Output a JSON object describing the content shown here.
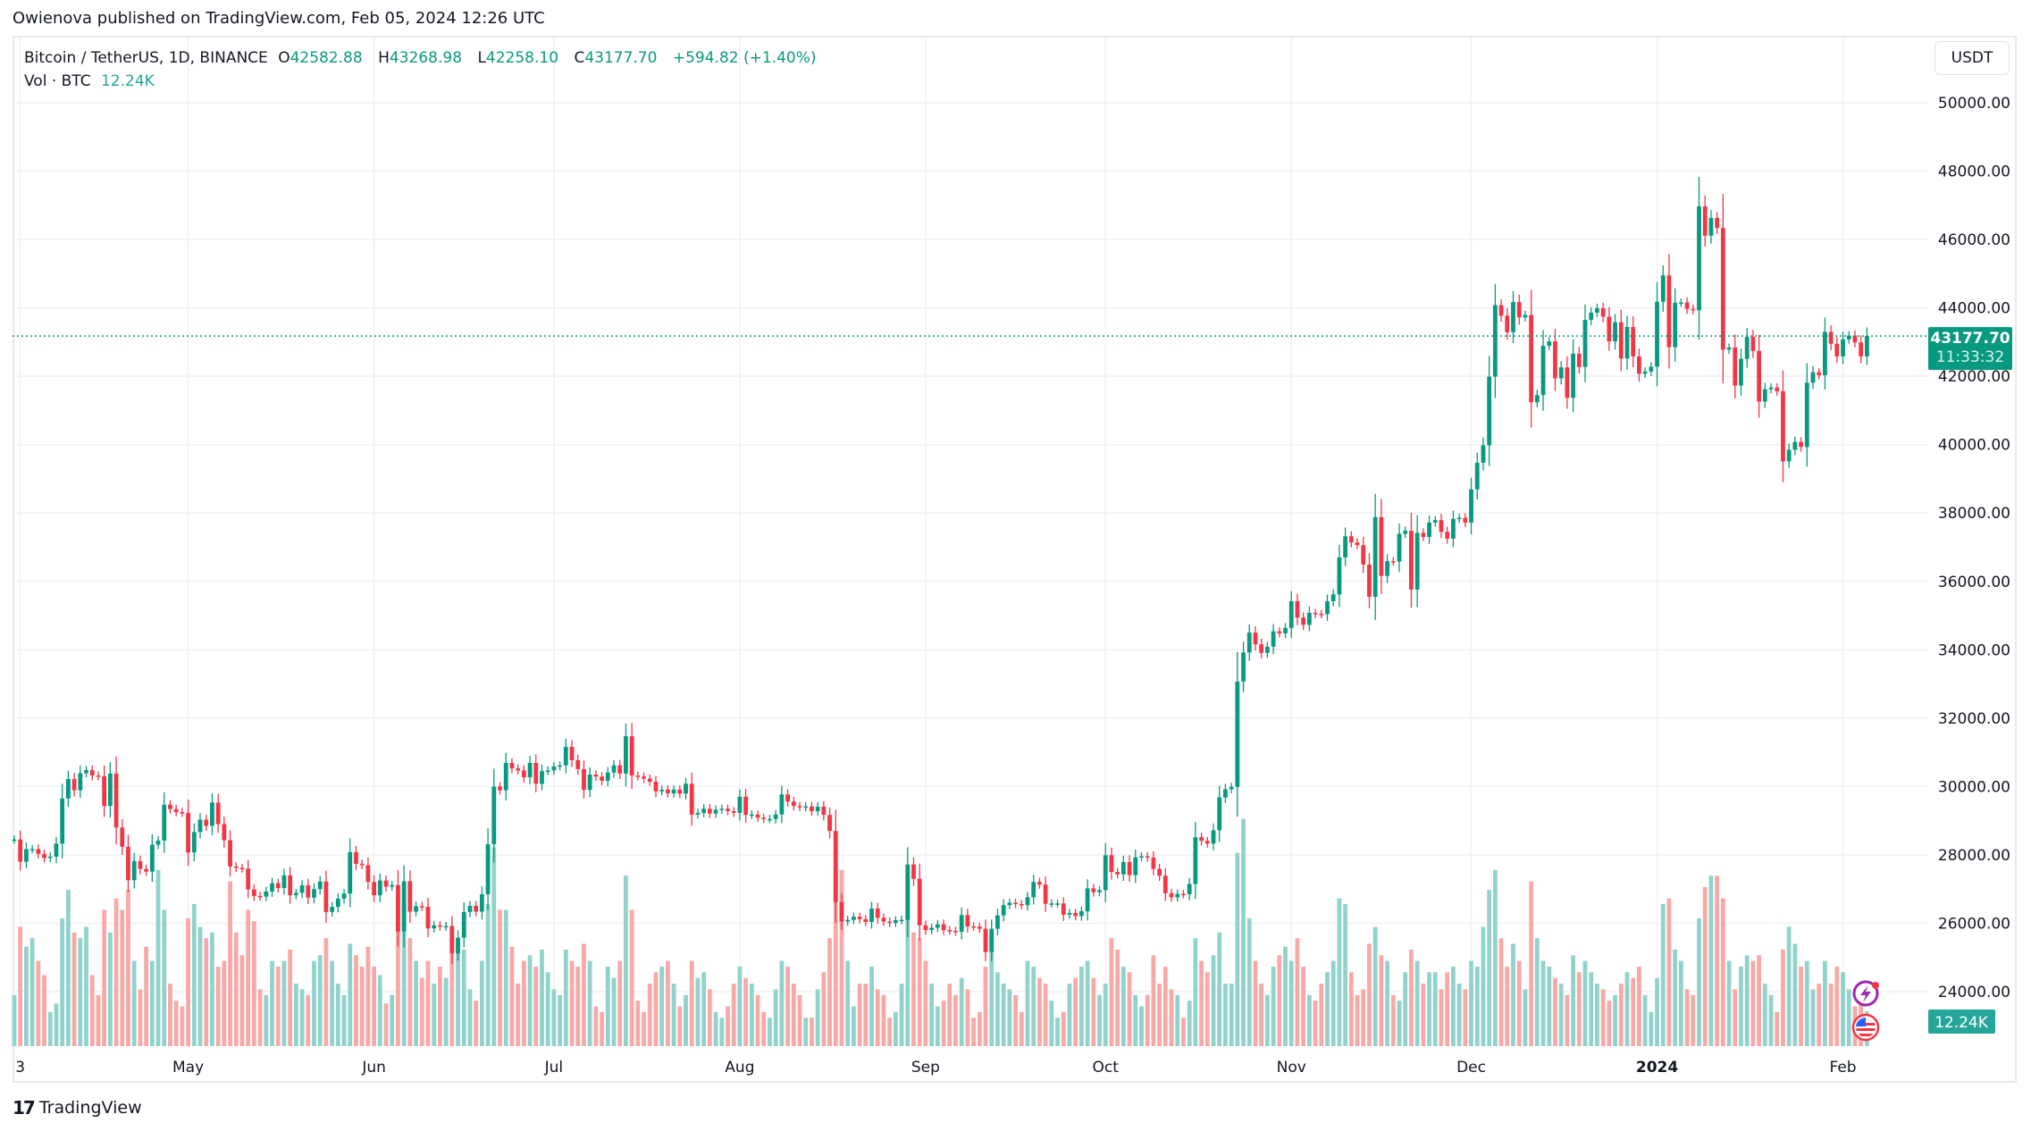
{
  "publisher_line": "Owienova published on TradingView.com, Feb 05, 2024 12:26 UTC",
  "legend": {
    "symbol": "Bitcoin / TetherUS, 1D, BINANCE",
    "o_label": "O",
    "o": "42582.88",
    "h_label": "H",
    "h": "43268.98",
    "l_label": "L",
    "l": "42258.10",
    "c_label": "C",
    "c": "43177.70",
    "change": "+594.82 (+1.40%)",
    "vol_label": "Vol · BTC",
    "vol_value": "12.24K"
  },
  "currency_button": "USDT",
  "last_price": {
    "price": "43177.70",
    "countdown": "11:33:32"
  },
  "volume_badge": "12.24K",
  "footer_brand": "TradingView",
  "icons": [
    "lightning-event-icon",
    "us-flag-event-icon",
    "tradingview-logo-icon"
  ],
  "colors": {
    "up": "#089981",
    "down": "#f23645",
    "vol_up": "#92d2cc",
    "vol_down": "#f7a9a7",
    "grid": "#f0f1f4"
  },
  "chart_data": {
    "type": "candlestick",
    "title": "Bitcoin / TetherUS, 1D, BINANCE",
    "ylim": [
      23000,
      51000
    ],
    "y_ticks": [
      "24000.00",
      "26000.00",
      "28000.00",
      "30000.00",
      "32000.00",
      "34000.00",
      "36000.00",
      "38000.00",
      "40000.00",
      "42000.00",
      "44000.00",
      "46000.00",
      "48000.00",
      "50000.00"
    ],
    "x_ticks": [
      {
        "label": "3",
        "date": "2023-04-03"
      },
      {
        "label": "May",
        "date": "2023-05-01"
      },
      {
        "label": "Jun",
        "date": "2023-06-01"
      },
      {
        "label": "Jul",
        "date": "2023-07-01"
      },
      {
        "label": "Aug",
        "date": "2023-08-01"
      },
      {
        "label": "Sep",
        "date": "2023-09-01"
      },
      {
        "label": "Oct",
        "date": "2023-10-01"
      },
      {
        "label": "Nov",
        "date": "2023-11-01"
      },
      {
        "label": "Dec",
        "date": "2023-12-01"
      },
      {
        "label": "2024",
        "date": "2024-01-01",
        "bold": true
      },
      {
        "label": "Feb",
        "date": "2024-02-01"
      }
    ],
    "grid": true,
    "first_open": 28450,
    "volume_unit": "K BTC",
    "months": [
      {
        "month": "2023-04",
        "first_day": 2,
        "close": [
          28450,
          27800,
          28170,
          28170,
          28030,
          27910,
          27950,
          28330,
          29650,
          30220,
          29890,
          30390,
          30480,
          30320,
          30300,
          29430,
          30380,
          28800,
          28240,
          27260,
          27820,
          27590,
          27510,
          28300,
          28420,
          29470,
          29340,
          29250,
          29230
        ],
        "volume": [
          18,
          42,
          35,
          38,
          30,
          25,
          12,
          15,
          45,
          55,
          40,
          38,
          42,
          25,
          18,
          48,
          40,
          52,
          48,
          55,
          30,
          20,
          35,
          30,
          62,
          48,
          22,
          16,
          14
        ]
      },
      {
        "month": "2023-05",
        "first_day": 1,
        "close": [
          28070,
          28670,
          29030,
          28850,
          29530,
          28900,
          28430,
          27660,
          27620,
          27600,
          26990,
          26800,
          26780,
          26930,
          27170,
          27030,
          27400,
          26820,
          26890,
          27110,
          26750,
          27000,
          27220,
          26330,
          26480,
          26720,
          26870,
          28080,
          27740,
          27700,
          27210
        ],
        "volume": [
          45,
          50,
          42,
          38,
          40,
          28,
          30,
          58,
          40,
          32,
          48,
          44,
          20,
          18,
          30,
          28,
          30,
          34,
          22,
          20,
          18,
          30,
          32,
          38,
          30,
          22,
          18,
          36,
          32,
          28,
          35
        ]
      },
      {
        "month": "2023-06",
        "first_day": 1,
        "close": [
          26820,
          27250,
          27070,
          27120,
          25760,
          27230,
          26340,
          26500,
          26480,
          25850,
          25940,
          25900,
          25920,
          25120,
          25580,
          26330,
          26510,
          26340,
          26850,
          28310,
          30000,
          29890,
          30690,
          30530,
          30470,
          30270,
          30690,
          30080,
          30450,
          30470
        ],
        "volume": [
          28,
          25,
          15,
          18,
          52,
          50,
          38,
          30,
          24,
          30,
          22,
          28,
          24,
          40,
          38,
          34,
          20,
          16,
          30,
          50,
          70,
          48,
          48,
          35,
          22,
          30,
          32,
          28,
          34,
          26
        ]
      },
      {
        "month": "2023-07",
        "first_day": 1,
        "close": [
          30590,
          30620,
          31160,
          30770,
          30510,
          29900,
          30350,
          30290,
          30170,
          30410,
          30620,
          30380,
          31470,
          30320,
          30290,
          30230,
          30140,
          29860,
          29910,
          29800,
          29910,
          29790,
          30080,
          29180,
          29230,
          29350,
          29210,
          29320,
          29350,
          29280,
          29230
        ],
        "volume": [
          20,
          18,
          34,
          30,
          28,
          36,
          30,
          14,
          12,
          28,
          24,
          30,
          60,
          48,
          16,
          12,
          22,
          26,
          28,
          30,
          22,
          14,
          18,
          30,
          24,
          26,
          20,
          12,
          10,
          14,
          22
        ]
      },
      {
        "month": "2023-08",
        "first_day": 1,
        "close": [
          29700,
          29170,
          29180,
          29090,
          29050,
          29050,
          29180,
          29770,
          29560,
          29430,
          29400,
          29420,
          29280,
          29410,
          29170,
          28700,
          26620,
          26050,
          26100,
          26190,
          26120,
          26040,
          26430,
          26160,
          26050,
          26010,
          26090,
          26100,
          27720,
          27300,
          25940
        ],
        "volume": [
          28,
          24,
          22,
          18,
          12,
          10,
          20,
          30,
          28,
          22,
          18,
          10,
          10,
          20,
          26,
          38,
          75,
          62,
          30,
          14,
          22,
          22,
          28,
          20,
          18,
          10,
          12,
          22,
          62,
          40,
          38
        ]
      },
      {
        "month": "2023-09",
        "first_day": 1,
        "close": [
          25800,
          25870,
          25970,
          25800,
          25780,
          25750,
          26240,
          25910,
          25900,
          25840,
          25160,
          25840,
          26230,
          26530,
          26600,
          26560,
          26530,
          26760,
          27210,
          27130,
          26570,
          26580,
          26580,
          26250,
          26300,
          26210,
          26350,
          27020,
          26910,
          26970
        ],
        "volume": [
          30,
          22,
          14,
          16,
          22,
          18,
          24,
          20,
          10,
          12,
          28,
          38,
          26,
          22,
          20,
          18,
          12,
          30,
          28,
          24,
          22,
          16,
          10,
          12,
          22,
          24,
          28,
          30,
          24,
          18
        ]
      },
      {
        "month": "2023-10",
        "first_day": 1,
        "close": [
          27990,
          27500,
          27430,
          27790,
          27410,
          27930,
          27960,
          27920,
          27590,
          27390,
          26880,
          26760,
          26860,
          26850,
          27150,
          28520,
          28410,
          28330,
          28720,
          29680,
          29920,
          29990,
          33070,
          33920,
          34500,
          34160,
          33910,
          34090,
          34540,
          34480,
          34640
        ],
        "volume": [
          22,
          38,
          34,
          28,
          26,
          18,
          14,
          18,
          32,
          22,
          28,
          20,
          18,
          10,
          16,
          38,
          30,
          26,
          32,
          40,
          22,
          22,
          68,
          80,
          45,
          30,
          22,
          18,
          28,
          32,
          35
        ]
      },
      {
        "month": "2023-11",
        "first_day": 1,
        "close": [
          35420,
          34940,
          34730,
          35080,
          35050,
          35040,
          35420,
          35620,
          36700,
          37320,
          37140,
          37060,
          36490,
          35550,
          37880,
          36160,
          36590,
          36580,
          37390,
          37480,
          35760,
          37420,
          37300,
          37720,
          37790,
          37450,
          37250,
          37830,
          37860,
          37720
        ],
        "volume": [
          30,
          38,
          28,
          18,
          16,
          22,
          26,
          30,
          52,
          50,
          26,
          18,
          20,
          36,
          42,
          32,
          30,
          18,
          16,
          26,
          34,
          30,
          22,
          26,
          26,
          20,
          26,
          28,
          22,
          20
        ]
      },
      {
        "month": "2023-12",
        "first_day": 1,
        "close": [
          38690,
          39470,
          39980,
          41990,
          44080,
          43770,
          43290,
          44170,
          43720,
          43790,
          41240,
          41450,
          42890,
          43020,
          41940,
          42260,
          41370,
          42660,
          42270,
          43650,
          43860,
          43990,
          43740,
          43020,
          43580,
          42520,
          43440,
          42580,
          42070,
          42140,
          42280
        ],
        "volume": [
          30,
          28,
          42,
          55,
          62,
          38,
          28,
          36,
          30,
          20,
          58,
          38,
          30,
          28,
          24,
          22,
          18,
          32,
          26,
          30,
          26,
          22,
          20,
          16,
          18,
          22,
          26,
          24,
          28,
          18,
          12
        ]
      },
      {
        "month": "2024-01",
        "first_day": 1,
        "close": [
          44180,
          44950,
          42850,
          44150,
          44160,
          43970,
          43930,
          46970,
          46110,
          46630,
          46340,
          42780,
          42840,
          41730,
          42510,
          43150,
          42740,
          41260,
          41620,
          41670,
          41560,
          39510,
          39850,
          40080,
          39930,
          41810,
          42120,
          42030,
          43300,
          42950,
          42580
        ],
        "volume": [
          24,
          50,
          52,
          34,
          30,
          20,
          18,
          45,
          56,
          60,
          60,
          52,
          30,
          20,
          28,
          32,
          30,
          32,
          22,
          18,
          12,
          34,
          42,
          36,
          28,
          30,
          20,
          22,
          30,
          22,
          28
        ]
      },
      {
        "month": "2024-02",
        "first_day": 1,
        "close": [
          43080,
          43190,
          42990,
          42580,
          43177.7
        ],
        "volume": [
          26,
          20,
          14,
          18,
          12.24
        ]
      }
    ]
  }
}
